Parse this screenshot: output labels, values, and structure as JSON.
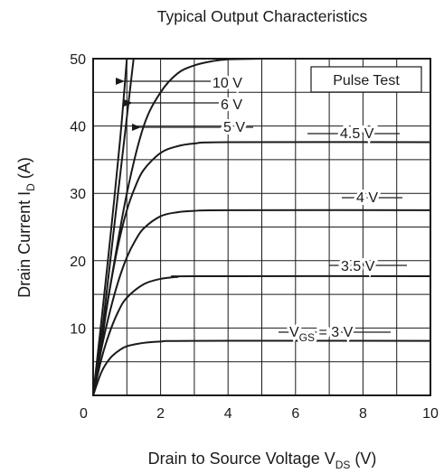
{
  "chart_data": {
    "type": "line",
    "title": "Typical Output Characteristics",
    "xlabel": {
      "main": "Drain to Source Voltage  V",
      "sub": "DS",
      "unit": "  (V)"
    },
    "ylabel": {
      "main": "Drain Current  I",
      "sub": "D",
      "unit": "  (A)"
    },
    "xlim": [
      0,
      10
    ],
    "ylim": [
      0,
      50
    ],
    "x_ticks": [
      "0",
      "2",
      "4",
      "6",
      "8",
      "10"
    ],
    "y_ticks": [
      "10",
      "20",
      "30",
      "40",
      "50"
    ],
    "grid": true,
    "annotation_box": "Pulse Test",
    "series": [
      {
        "label": "10 V",
        "points": [
          [
            0,
            0
          ],
          [
            0.2,
            9
          ],
          [
            0.5,
            23
          ],
          [
            0.8,
            38
          ],
          [
            1.0,
            50
          ]
        ]
      },
      {
        "label": "6 V",
        "points": [
          [
            0,
            0
          ],
          [
            0.3,
            11
          ],
          [
            0.6,
            24
          ],
          [
            0.9,
            37
          ],
          [
            1.2,
            50
          ]
        ]
      },
      {
        "label": "5 V",
        "points": [
          [
            0,
            0
          ],
          [
            0.2,
            6
          ],
          [
            0.5,
            16
          ],
          [
            1.0,
            30
          ],
          [
            1.5,
            40
          ],
          [
            2.0,
            45
          ],
          [
            2.5,
            47.8
          ],
          [
            3.0,
            49
          ],
          [
            3.5,
            49.6
          ],
          [
            4.0,
            49.9
          ],
          [
            5.0,
            50
          ]
        ]
      },
      {
        "label": "4.5 V",
        "points": [
          [
            0,
            0
          ],
          [
            0.25,
            8.5
          ],
          [
            0.5,
            16
          ],
          [
            0.75,
            22.5
          ],
          [
            1.0,
            27.5
          ],
          [
            1.25,
            31
          ],
          [
            1.5,
            33.5
          ],
          [
            2.0,
            36
          ],
          [
            2.5,
            37
          ],
          [
            3.0,
            37.4
          ],
          [
            4.0,
            37.6
          ],
          [
            10.0,
            37.6
          ]
        ]
      },
      {
        "label": "4 V",
        "points": [
          [
            0,
            0
          ],
          [
            0.25,
            7
          ],
          [
            0.5,
            12.5
          ],
          [
            0.75,
            17
          ],
          [
            1.0,
            20.5
          ],
          [
            1.25,
            23
          ],
          [
            1.5,
            24.8
          ],
          [
            2.0,
            26.6
          ],
          [
            2.5,
            27.2
          ],
          [
            3.0,
            27.4
          ],
          [
            4.0,
            27.5
          ],
          [
            10.0,
            27.5
          ]
        ]
      },
      {
        "label": "3.5 V",
        "points": [
          [
            0,
            0
          ],
          [
            0.25,
            5.5
          ],
          [
            0.5,
            9.5
          ],
          [
            0.75,
            12.5
          ],
          [
            1.0,
            14.5
          ],
          [
            1.5,
            16.5
          ],
          [
            2.0,
            17.3
          ],
          [
            2.5,
            17.6
          ],
          [
            3.0,
            17.7
          ],
          [
            10.0,
            17.7
          ]
        ]
      },
      {
        "label": "3 V",
        "prefix": "V",
        "prefix_sub": "GS",
        "prefix_suffix": " = ",
        "points": [
          [
            0,
            0
          ],
          [
            0.25,
            3.5
          ],
          [
            0.5,
            5.5
          ],
          [
            0.75,
            6.6
          ],
          [
            1.0,
            7.3
          ],
          [
            1.5,
            7.8
          ],
          [
            2.0,
            8.0
          ],
          [
            3.0,
            8.1
          ],
          [
            10.0,
            8.1
          ]
        ]
      }
    ]
  }
}
